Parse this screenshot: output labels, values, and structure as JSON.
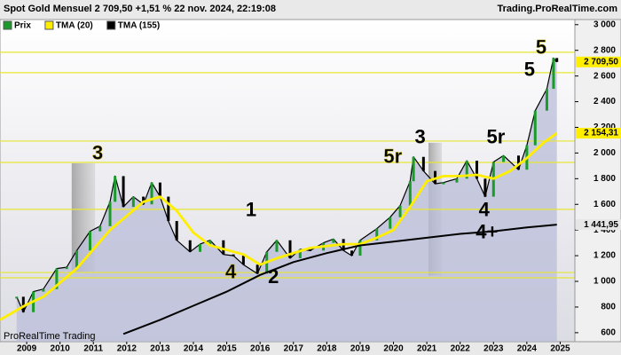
{
  "header": {
    "title": "Spot  Gold Mensuel 2 709,50 +1,51 % 22 nov. 2024, 22:19:08",
    "source": "Trading.ProRealTime.com"
  },
  "chart_data": {
    "type": "line",
    "watermark": "ProRealTime Trading",
    "xlim": [
      2008.2,
      2025.44
    ],
    "xticks": [
      2009,
      2010,
      2011,
      2012,
      2013,
      2014,
      2015,
      2016,
      2017,
      2018,
      2019,
      2020,
      2021,
      2022,
      2023,
      2024,
      2025
    ],
    "ylim": [
      530,
      3040
    ],
    "yticks": [
      {
        "value": 3000,
        "label": "3 000"
      },
      {
        "value": 2800,
        "label": "2 800"
      },
      {
        "value": 2600,
        "label": "2 600"
      },
      {
        "value": 2400,
        "label": "2 400"
      },
      {
        "value": 2200,
        "label": "2 200"
      },
      {
        "value": 2000,
        "label": "2 000"
      },
      {
        "value": 1800,
        "label": "1 800"
      },
      {
        "value": 1600,
        "label": "1 600"
      },
      {
        "value": 1400,
        "label": "1 400"
      },
      {
        "value": 1200,
        "label": "1 200"
      },
      {
        "value": 1000,
        "label": "1 000"
      },
      800,
      600
    ],
    "series": [
      {
        "name": "Prix",
        "color": "#000000",
        "fill": "#b9bed8",
        "label_bg": "#ffee00",
        "last_label": "2 709,50",
        "x": [
          2008.7,
          2008.9,
          2009.2,
          2009.5,
          2009.9,
          2010.2,
          2010.5,
          2010.9,
          2011.2,
          2011.5,
          2011.65,
          2011.9,
          2012.2,
          2012.5,
          2012.75,
          2013.0,
          2013.25,
          2013.5,
          2013.9,
          2014.2,
          2014.5,
          2014.9,
          2015.2,
          2015.5,
          2015.92,
          2016.2,
          2016.5,
          2016.9,
          2017.2,
          2017.5,
          2017.9,
          2018.2,
          2018.5,
          2018.75,
          2019.0,
          2019.5,
          2019.9,
          2020.2,
          2020.5,
          2020.6,
          2020.9,
          2021.25,
          2021.5,
          2021.9,
          2022.2,
          2022.5,
          2022.75,
          2023.0,
          2023.3,
          2023.75,
          2024.0,
          2024.25,
          2024.6,
          2024.8,
          2024.9
        ],
        "values": [
          880,
          760,
          920,
          940,
          1100,
          1110,
          1240,
          1390,
          1430,
          1620,
          1820,
          1580,
          1660,
          1600,
          1770,
          1660,
          1470,
          1320,
          1230,
          1290,
          1320,
          1210,
          1200,
          1130,
          1060,
          1230,
          1320,
          1180,
          1250,
          1240,
          1300,
          1330,
          1240,
          1200,
          1320,
          1410,
          1500,
          1590,
          1780,
          1970,
          1860,
          1760,
          1770,
          1800,
          1940,
          1800,
          1660,
          1930,
          1980,
          1870,
          2060,
          2330,
          2500,
          2740,
          2709.5
        ]
      },
      {
        "name": "TMA (20)",
        "color": "#ffee00",
        "label_bg": "#ffee00",
        "last_label": "2 154,31",
        "x": [
          2008.2,
          2009.0,
          2009.5,
          2010.5,
          2011.5,
          2012.5,
          2013.0,
          2013.5,
          2014.0,
          2014.5,
          2015.5,
          2016.0,
          2016.5,
          2017.5,
          2018.5,
          2019.0,
          2019.5,
          2020.0,
          2020.5,
          2021.0,
          2021.5,
          2022.0,
          2022.5,
          2023.0,
          2023.5,
          2024.0,
          2024.5,
          2024.9
        ],
        "values": [
          700,
          820,
          880,
          1100,
          1400,
          1620,
          1660,
          1550,
          1380,
          1280,
          1210,
          1130,
          1180,
          1260,
          1290,
          1290,
          1340,
          1400,
          1580,
          1780,
          1820,
          1820,
          1830,
          1800,
          1860,
          1960,
          2080,
          2154.31
        ]
      },
      {
        "name": "TMA (155)",
        "color": "#000000",
        "label_bg": "#e6e6e6",
        "last_label": "1 441,95",
        "x": [
          2011.9,
          2013.0,
          2014.0,
          2015.0,
          2016.0,
          2017.0,
          2018.0,
          2019.0,
          2020.0,
          2021.0,
          2022.0,
          2023.0,
          2024.0,
          2024.9
        ],
        "values": [
          590,
          700,
          810,
          920,
          1050,
          1150,
          1220,
          1280,
          1310,
          1340,
          1370,
          1390,
          1420,
          1441.95
        ]
      }
    ],
    "levels": {
      "color": "#e6e632",
      "values": [
        2785,
        2626,
        2093,
        1927,
        1561,
        1069,
        1028
      ]
    },
    "zones": [
      {
        "x": [
          2010.35,
          2011.05
        ],
        "y": [
          1075,
          1920
        ]
      },
      {
        "x": [
          2021.05,
          2021.45
        ],
        "y": [
          1045,
          2080
        ]
      }
    ],
    "annotations": [
      {
        "text": "3",
        "color": "#ffee00",
        "x": 2011.13,
        "y": 1990
      },
      {
        "text": "5r",
        "color": "#ffee00",
        "x": 2019.98,
        "y": 1962
      },
      {
        "text": "3",
        "color": "#1a1ad8",
        "x": 2020.8,
        "y": 2114
      },
      {
        "text": "5r",
        "color": "#1a1ad8",
        "x": 2023.07,
        "y": 2114
      },
      {
        "text": "5",
        "color": "#ffee00",
        "x": 2024.43,
        "y": 2813
      },
      {
        "text": "5",
        "color": "#1a1ad8",
        "x": 2024.08,
        "y": 2640
      },
      {
        "text": "1",
        "color": "#1a1ad8",
        "x": 2015.73,
        "y": 1550
      },
      {
        "text": "4",
        "color": "#ffee00",
        "x": 2015.12,
        "y": 1066
      },
      {
        "text": "2",
        "color": "#1a1ad8",
        "x": 2016.4,
        "y": 1025
      },
      {
        "text": "4",
        "color": "#1a1ad8",
        "x": 2022.72,
        "y": 1550
      },
      {
        "text": "4+",
        "color": "#1a1ad8",
        "x": 2022.8,
        "y": 1377
      }
    ]
  }
}
